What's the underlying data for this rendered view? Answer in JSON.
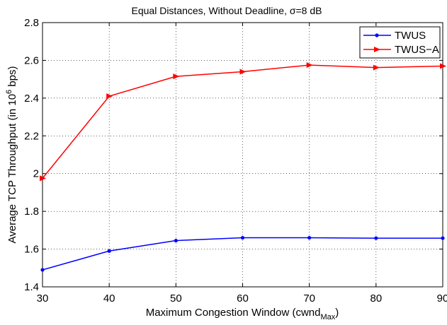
{
  "chart_data": {
    "type": "line",
    "title_main": "Equal Distances, Without Deadline, ",
    "title_sigma": "σ",
    "title_tail": "=8 dB",
    "xlabel_main": "Maximum Congestion Window (cwnd",
    "xlabel_sub": "Max",
    "xlabel_close": ")",
    "ylabel_main": "Average TCP Throughput (in 10",
    "ylabel_sup": "6",
    "ylabel_tail": " bps)",
    "x": [
      30,
      40,
      50,
      60,
      70,
      80,
      90
    ],
    "xlim": [
      30,
      90
    ],
    "ylim": [
      1.4,
      2.8
    ],
    "xticks": [
      30,
      40,
      50,
      60,
      70,
      80,
      90
    ],
    "yticks": [
      1.4,
      1.6,
      1.8,
      2.0,
      2.2,
      2.4,
      2.6,
      2.8
    ],
    "ytick_labels": [
      "1.4",
      "1.6",
      "1.8",
      "2",
      "2.2",
      "2.4",
      "2.6",
      "2.8"
    ],
    "grid": true,
    "legend_position": "top-right",
    "series": [
      {
        "name": "TWUS",
        "color": "#0000ff",
        "marker": "dot",
        "values": [
          1.49,
          1.59,
          1.645,
          1.66,
          1.66,
          1.658,
          1.658
        ]
      },
      {
        "name": "TWUS−A",
        "color": "#ff0000",
        "marker": "triangle-right",
        "values": [
          1.975,
          2.41,
          2.515,
          2.54,
          2.575,
          2.562,
          2.57
        ]
      }
    ]
  }
}
